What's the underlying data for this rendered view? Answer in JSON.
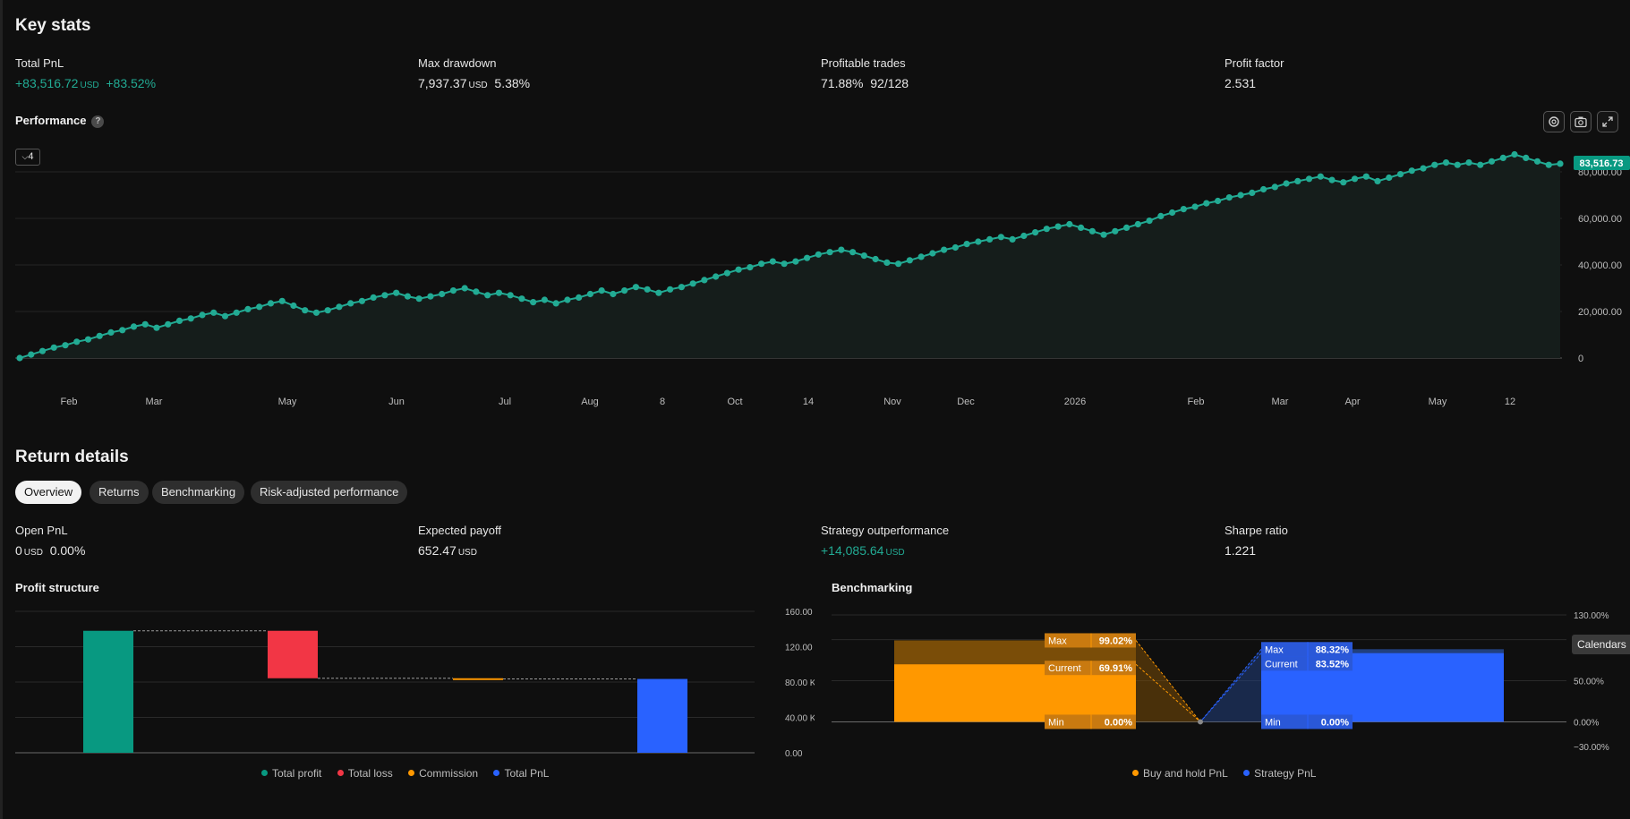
{
  "key_stats": {
    "title": "Key stats",
    "total_pnl": {
      "label": "Total PnL",
      "value": "+83,516.72",
      "currency": "USD",
      "pct": "+83.52%"
    },
    "max_drawdown": {
      "label": "Max drawdown",
      "value": "7,937.37",
      "currency": "USD",
      "pct": "5.38%"
    },
    "profitable_trades": {
      "label": "Profitable trades",
      "pct": "71.88%",
      "count": "92/128"
    },
    "profit_factor": {
      "label": "Profit factor",
      "value": "2.531"
    }
  },
  "performance": {
    "title": "Performance",
    "help_icon": "question-icon",
    "zoom_label": "4",
    "toolbar_icons": [
      "settings-icon",
      "camera-icon",
      "expand-icon"
    ],
    "last_value_badge": "83,516.73",
    "colors": {
      "line": "#22ab94",
      "badge": "#089981"
    },
    "chart_data": {
      "type": "line",
      "x_ticks": [
        "Feb",
        "Mar",
        "May",
        "Jun",
        "Jul",
        "Aug",
        "8",
        "Oct",
        "14",
        "Nov",
        "Dec",
        "2026",
        "Feb",
        "Mar",
        "Apr",
        "May",
        "12"
      ],
      "y_ticks": [
        "80,000.00",
        "60,000.00",
        "40,000.00",
        "20,000.00",
        "0"
      ],
      "ylim": [
        0,
        80000
      ],
      "values": [
        0,
        1500,
        3000,
        4500,
        5500,
        7000,
        8000,
        9500,
        11000,
        12000,
        13500,
        14500,
        13000,
        14500,
        16000,
        17000,
        18500,
        19500,
        18000,
        19500,
        21000,
        22000,
        23500,
        24500,
        22500,
        20500,
        19500,
        20500,
        22000,
        23500,
        24500,
        26000,
        27000,
        28000,
        26500,
        25500,
        26500,
        27500,
        29000,
        30000,
        28500,
        27000,
        28000,
        27000,
        25500,
        24000,
        25000,
        23500,
        25000,
        26000,
        27500,
        29000,
        27500,
        29000,
        30500,
        29500,
        28000,
        29500,
        30500,
        32000,
        33500,
        35000,
        36500,
        38000,
        39000,
        40500,
        41500,
        40500,
        41500,
        43000,
        44500,
        45500,
        46500,
        45500,
        44000,
        42500,
        41000,
        40500,
        42000,
        43500,
        45000,
        46500,
        47500,
        49000,
        50000,
        51000,
        52000,
        51000,
        52500,
        54000,
        55500,
        56500,
        57500,
        56000,
        54500,
        53000,
        54500,
        56000,
        57500,
        59000,
        61000,
        62500,
        64000,
        65000,
        66500,
        67500,
        69000,
        70000,
        71000,
        72500,
        73500,
        75000,
        76000,
        77000,
        78000,
        76500,
        75500,
        77000,
        78000,
        76000,
        77500,
        79000,
        80500,
        81500,
        83000,
        84000,
        83000,
        84000,
        83000,
        84500,
        86000,
        87500,
        86000,
        84500,
        83000,
        83500
      ]
    }
  },
  "return_details": {
    "title": "Return details",
    "tabs": [
      "Overview",
      "Returns",
      "Benchmarking",
      "Risk-adjusted performance"
    ],
    "open_pnl": {
      "label": "Open PnL",
      "value": "0",
      "currency": "USD",
      "pct": "0.00%"
    },
    "expected_payoff": {
      "label": "Expected payoff",
      "value": "652.47",
      "currency": "USD"
    },
    "strategy_outperformance": {
      "label": "Strategy outperformance",
      "value": "+14,085.64",
      "currency": "USD"
    },
    "sharpe_ratio": {
      "label": "Sharpe ratio",
      "value": "1.221"
    }
  },
  "profit_structure": {
    "title": "Profit structure",
    "colors": {
      "profit": "#089981",
      "loss": "#f23645",
      "commission": "#ff9800",
      "pnl": "#2962ff"
    },
    "chart_data": {
      "type": "bar",
      "categories": [
        "Total profit",
        "Total loss",
        "Commission",
        "Total PnL"
      ],
      "series": [
        {
          "name": "Total profit",
          "start": 0,
          "end": 138000
        },
        {
          "name": "Total loss",
          "start": 138000,
          "end": 84300
        },
        {
          "name": "Commission",
          "start": 84300,
          "end": 83500
        },
        {
          "name": "Total PnL",
          "start": 0,
          "end": 83500
        }
      ],
      "y_ticks": [
        "160.00 K",
        "120.00 K",
        "80.00 K",
        "40.00 K",
        "0.00"
      ],
      "ylim": [
        0,
        160000
      ],
      "legend": "bottom"
    }
  },
  "benchmarking": {
    "title": "Benchmarking",
    "calendars_label": "Calendars",
    "colors": {
      "buy_hold": "#ff9800",
      "strategy": "#2962ff"
    },
    "chart_data": {
      "type": "bar",
      "categories": [
        "Buy and hold PnL",
        "Strategy PnL"
      ],
      "series": [
        {
          "name": "Buy and hold PnL",
          "max": 99.02,
          "current": 69.91,
          "min": 0.0,
          "max_label": "Max",
          "max_text": "99.02%",
          "current_label": "Current",
          "current_text": "69.91%",
          "min_label": "Min",
          "min_text": "0.00%"
        },
        {
          "name": "Strategy PnL",
          "max": 88.32,
          "current": 83.52,
          "min": 0.0,
          "max_label": "Max",
          "max_text": "88.32%",
          "current_label": "Current",
          "current_text": "83.52%",
          "min_label": "Min",
          "min_text": "0.00%"
        }
      ],
      "y_ticks": [
        "130.00%",
        "50.00%",
        "0.00%",
        "−30.00%"
      ],
      "ylim": [
        -30,
        130
      ],
      "legend": "bottom"
    }
  }
}
